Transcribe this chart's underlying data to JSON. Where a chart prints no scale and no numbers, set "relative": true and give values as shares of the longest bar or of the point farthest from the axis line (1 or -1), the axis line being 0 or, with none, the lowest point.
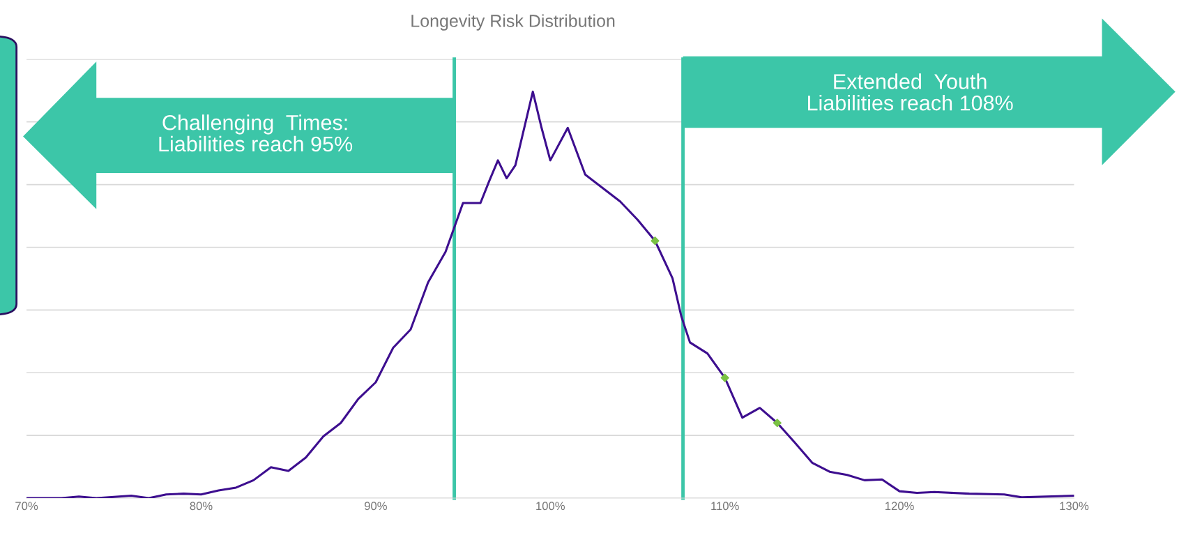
{
  "chart_data": {
    "type": "line",
    "title": "Longevity Risk Distribution",
    "relative": true,
    "x": [
      70,
      72,
      73,
      74,
      76,
      77,
      78,
      79,
      80,
      81,
      82,
      83,
      84,
      85,
      86,
      87,
      88,
      89,
      90,
      91,
      92,
      93,
      94,
      95,
      96,
      96.5,
      97,
      97.5,
      98,
      99,
      99.5,
      100,
      101,
      102,
      103,
      104,
      105,
      106,
      107,
      107.5,
      108,
      109,
      110,
      111,
      112,
      113,
      114,
      115,
      116,
      117,
      118,
      119,
      120,
      121,
      122,
      124,
      126,
      127,
      130
    ],
    "series": [
      {
        "color": "#3d0e8f",
        "marker": "none",
        "values": [
          0,
          0,
          0.004,
          0,
          0.006,
          0,
          0.009,
          0.011,
          0.009,
          0.019,
          0.026,
          0.044,
          0.076,
          0.067,
          0.1,
          0.152,
          0.185,
          0.244,
          0.285,
          0.37,
          0.415,
          0.531,
          0.606,
          0.726,
          0.726,
          0.78,
          0.831,
          0.787,
          0.819,
          1,
          0.911,
          0.831,
          0.911,
          0.796,
          0.763,
          0.73,
          0.685,
          0.633,
          0.541,
          0.448,
          0.383,
          0.356,
          0.296,
          0.198,
          0.222,
          0.185,
          0.137,
          0.087,
          0.065,
          0.057,
          0.044,
          0.046,
          0.017,
          0.013,
          0.015,
          0.011,
          0.009,
          0.002,
          0.006
        ]
      },
      {
        "type": "scatter",
        "color": "#7ac143",
        "marker": "diamond",
        "x": [
          106,
          110,
          113
        ],
        "values": [
          0.633,
          0.296,
          0.185
        ]
      }
    ],
    "xlim": [
      70,
      130
    ],
    "xticks": [
      {
        "value": 70,
        "label": "70%"
      },
      {
        "value": 80,
        "label": "80%"
      },
      {
        "value": 90,
        "label": "90%"
      },
      {
        "value": 100,
        "label": "100%"
      },
      {
        "value": 110,
        "label": "110%"
      },
      {
        "value": 120,
        "label": "120%"
      },
      {
        "value": 130,
        "label": "130%"
      }
    ],
    "tick_labels": "x",
    "grid": "y",
    "legend": false,
    "ref_lines": [
      {
        "axis": "x",
        "value": 94.5,
        "color": "#3cc6a8"
      },
      {
        "axis": "x",
        "value": 107.6,
        "color": "#3cc6a8"
      }
    ],
    "annotations": [
      "Challenging  Times:\nLiabilities reach 95%",
      "Extended  Youth\nLiabilities reach 108%"
    ]
  }
}
